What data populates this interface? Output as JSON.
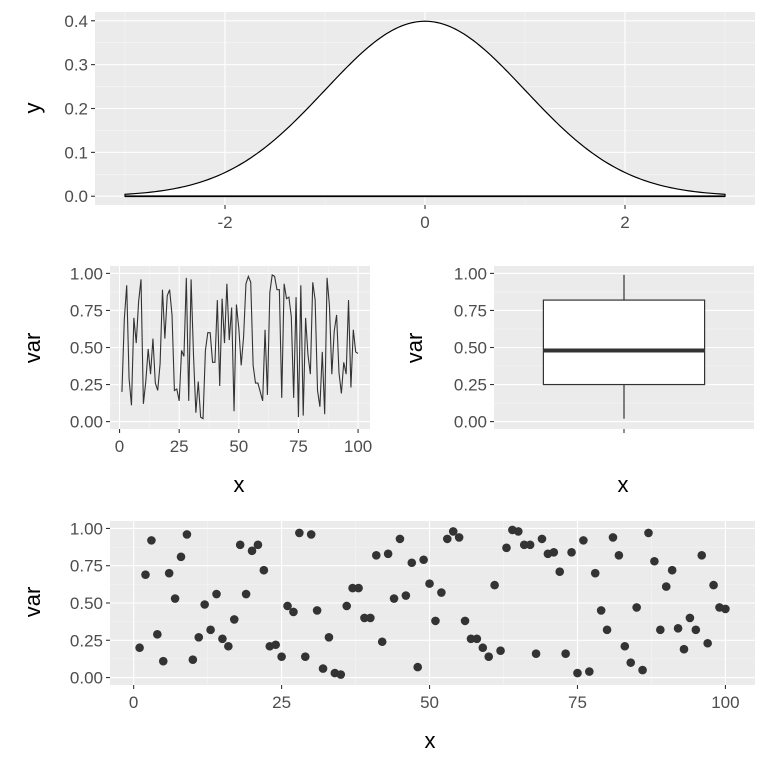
{
  "chart_data": [
    {
      "id": "density",
      "type": "area",
      "description_of_series": "standard normal density curve, filled white with black outline",
      "function": "dnorm",
      "x_from": -3,
      "x_to": 3,
      "xlabel": "",
      "ylabel": "y",
      "xlim": [
        -3.3,
        3.3
      ],
      "ylim": [
        -0.02,
        0.42
      ],
      "x_ticks": [
        -2,
        0,
        2
      ],
      "y_ticks": [
        0.0,
        0.1,
        0.2,
        0.3,
        0.4
      ],
      "x_tick_labels": [
        "-2",
        "0",
        "2"
      ],
      "y_tick_labels": [
        "0.0",
        "0.1",
        "0.2",
        "0.3",
        "0.4"
      ],
      "fill_color": "#ffffff",
      "line_color": "#000000",
      "grid": true
    },
    {
      "id": "line",
      "type": "line",
      "xlabel": "x",
      "ylabel": "var",
      "xlim": [
        -4,
        105
      ],
      "ylim": [
        -0.05,
        1.05
      ],
      "x_ticks": [
        0,
        25,
        50,
        75,
        100
      ],
      "y_ticks": [
        0,
        0.25,
        0.5,
        0.75,
        1
      ],
      "x_tick_labels": [
        "0",
        "25",
        "50",
        "75",
        "100"
      ],
      "y_tick_labels": [
        "0.00",
        "0.25",
        "0.50",
        "0.75",
        "1.00"
      ],
      "line_color": "#333333",
      "grid": true,
      "x": [
        1,
        2,
        3,
        4,
        5,
        6,
        7,
        8,
        9,
        10,
        11,
        12,
        13,
        14,
        15,
        16,
        17,
        18,
        19,
        20,
        21,
        22,
        23,
        24,
        25,
        26,
        27,
        28,
        29,
        30,
        31,
        32,
        33,
        34,
        35,
        36,
        37,
        38,
        39,
        40,
        41,
        42,
        43,
        44,
        45,
        46,
        47,
        48,
        49,
        50,
        51,
        52,
        53,
        54,
        55,
        56,
        57,
        58,
        59,
        60,
        61,
        62,
        63,
        64,
        65,
        66,
        67,
        68,
        69,
        70,
        71,
        72,
        73,
        74,
        75,
        76,
        77,
        78,
        79,
        80,
        81,
        82,
        83,
        84,
        85,
        86,
        87,
        88,
        89,
        90,
        91,
        92,
        93,
        94,
        95,
        96,
        97,
        98,
        99,
        100
      ],
      "y": [
        0.2,
        0.69,
        0.92,
        0.29,
        0.11,
        0.7,
        0.53,
        0.81,
        0.96,
        0.12,
        0.27,
        0.49,
        0.32,
        0.56,
        0.26,
        0.21,
        0.39,
        0.89,
        0.56,
        0.85,
        0.89,
        0.72,
        0.21,
        0.22,
        0.14,
        0.48,
        0.44,
        0.97,
        0.14,
        0.96,
        0.45,
        0.06,
        0.27,
        0.03,
        0.02,
        0.48,
        0.6,
        0.6,
        0.4,
        0.4,
        0.82,
        0.24,
        0.83,
        0.53,
        0.93,
        0.55,
        0.77,
        0.07,
        0.79,
        0.63,
        0.38,
        0.57,
        0.93,
        0.98,
        0.94,
        0.38,
        0.26,
        0.26,
        0.2,
        0.14,
        0.62,
        0.18,
        0.87,
        0.99,
        0.98,
        0.89,
        0.89,
        0.16,
        0.93,
        0.83,
        0.84,
        0.71,
        0.16,
        0.84,
        0.03,
        0.92,
        0.04,
        0.7,
        0.45,
        0.32,
        0.94,
        0.82,
        0.21,
        0.1,
        0.47,
        0.05,
        0.97,
        0.78,
        0.32,
        0.61,
        0.72,
        0.33,
        0.19,
        0.4,
        0.32,
        0.82,
        0.23,
        0.62,
        0.47,
        0.46
      ]
    },
    {
      "id": "box",
      "type": "box",
      "xlabel": "x",
      "ylabel": "var",
      "ylim": [
        -0.05,
        1.05
      ],
      "y_ticks": [
        0,
        0.25,
        0.5,
        0.75,
        1
      ],
      "y_tick_labels": [
        "0.00",
        "0.25",
        "0.50",
        "0.75",
        "1.00"
      ],
      "min": 0.02,
      "q1": 0.25,
      "median": 0.48,
      "q3": 0.82,
      "max": 0.99,
      "box_fill": "#ffffff",
      "line_color": "#333333",
      "grid": true
    },
    {
      "id": "scatter",
      "type": "scatter",
      "xlabel": "x",
      "ylabel": "var",
      "xlim": [
        -4,
        105
      ],
      "ylim": [
        -0.05,
        1.05
      ],
      "x_ticks": [
        0,
        25,
        50,
        75,
        100
      ],
      "y_ticks": [
        0,
        0.25,
        0.5,
        0.75,
        1
      ],
      "x_tick_labels": [
        "0",
        "25",
        "50",
        "75",
        "100"
      ],
      "y_tick_labels": [
        "0.00",
        "0.25",
        "0.50",
        "0.75",
        "1.00"
      ],
      "point_color": "#333333",
      "grid": true,
      "same_data_as": "line"
    }
  ]
}
